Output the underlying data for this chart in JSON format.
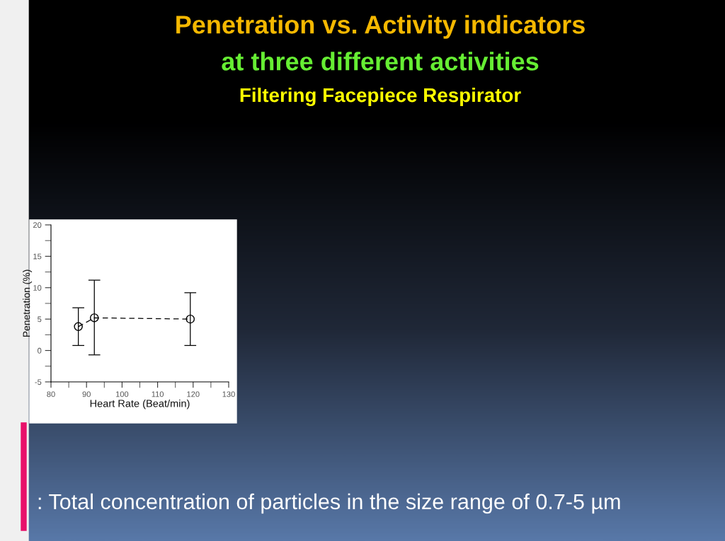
{
  "chart_data": {
    "type": "line",
    "title": "Penetration vs. Activity indicators",
    "subtitle": "at three different activities",
    "annotations": [
      "Filtering Facepiece Respirator",
      ": Total concentration of particles in the size range of 0.7-5 µm"
    ],
    "xlabel": "Heart Rate (Beat/min)",
    "ylabel": "Penetration (%)",
    "x": [
      87.7,
      92.2,
      119.2
    ],
    "series": [
      {
        "color": "#000000",
        "values": [
          3.8,
          5.2,
          5.0
        ],
        "errors": [
          [
            0.8,
            6.8
          ],
          [
            -0.7,
            11.2
          ],
          [
            0.8,
            9.2
          ]
        ]
      }
    ],
    "marker": "circle",
    "line_style": "dashed",
    "xlim": [
      80,
      130
    ],
    "xticks": [
      80,
      90,
      100,
      110,
      120,
      130
    ],
    "ylim": [
      -5,
      20
    ],
    "yticks": [
      -5,
      0,
      5,
      10,
      15,
      20
    ],
    "grid": false,
    "legend": false
  }
}
